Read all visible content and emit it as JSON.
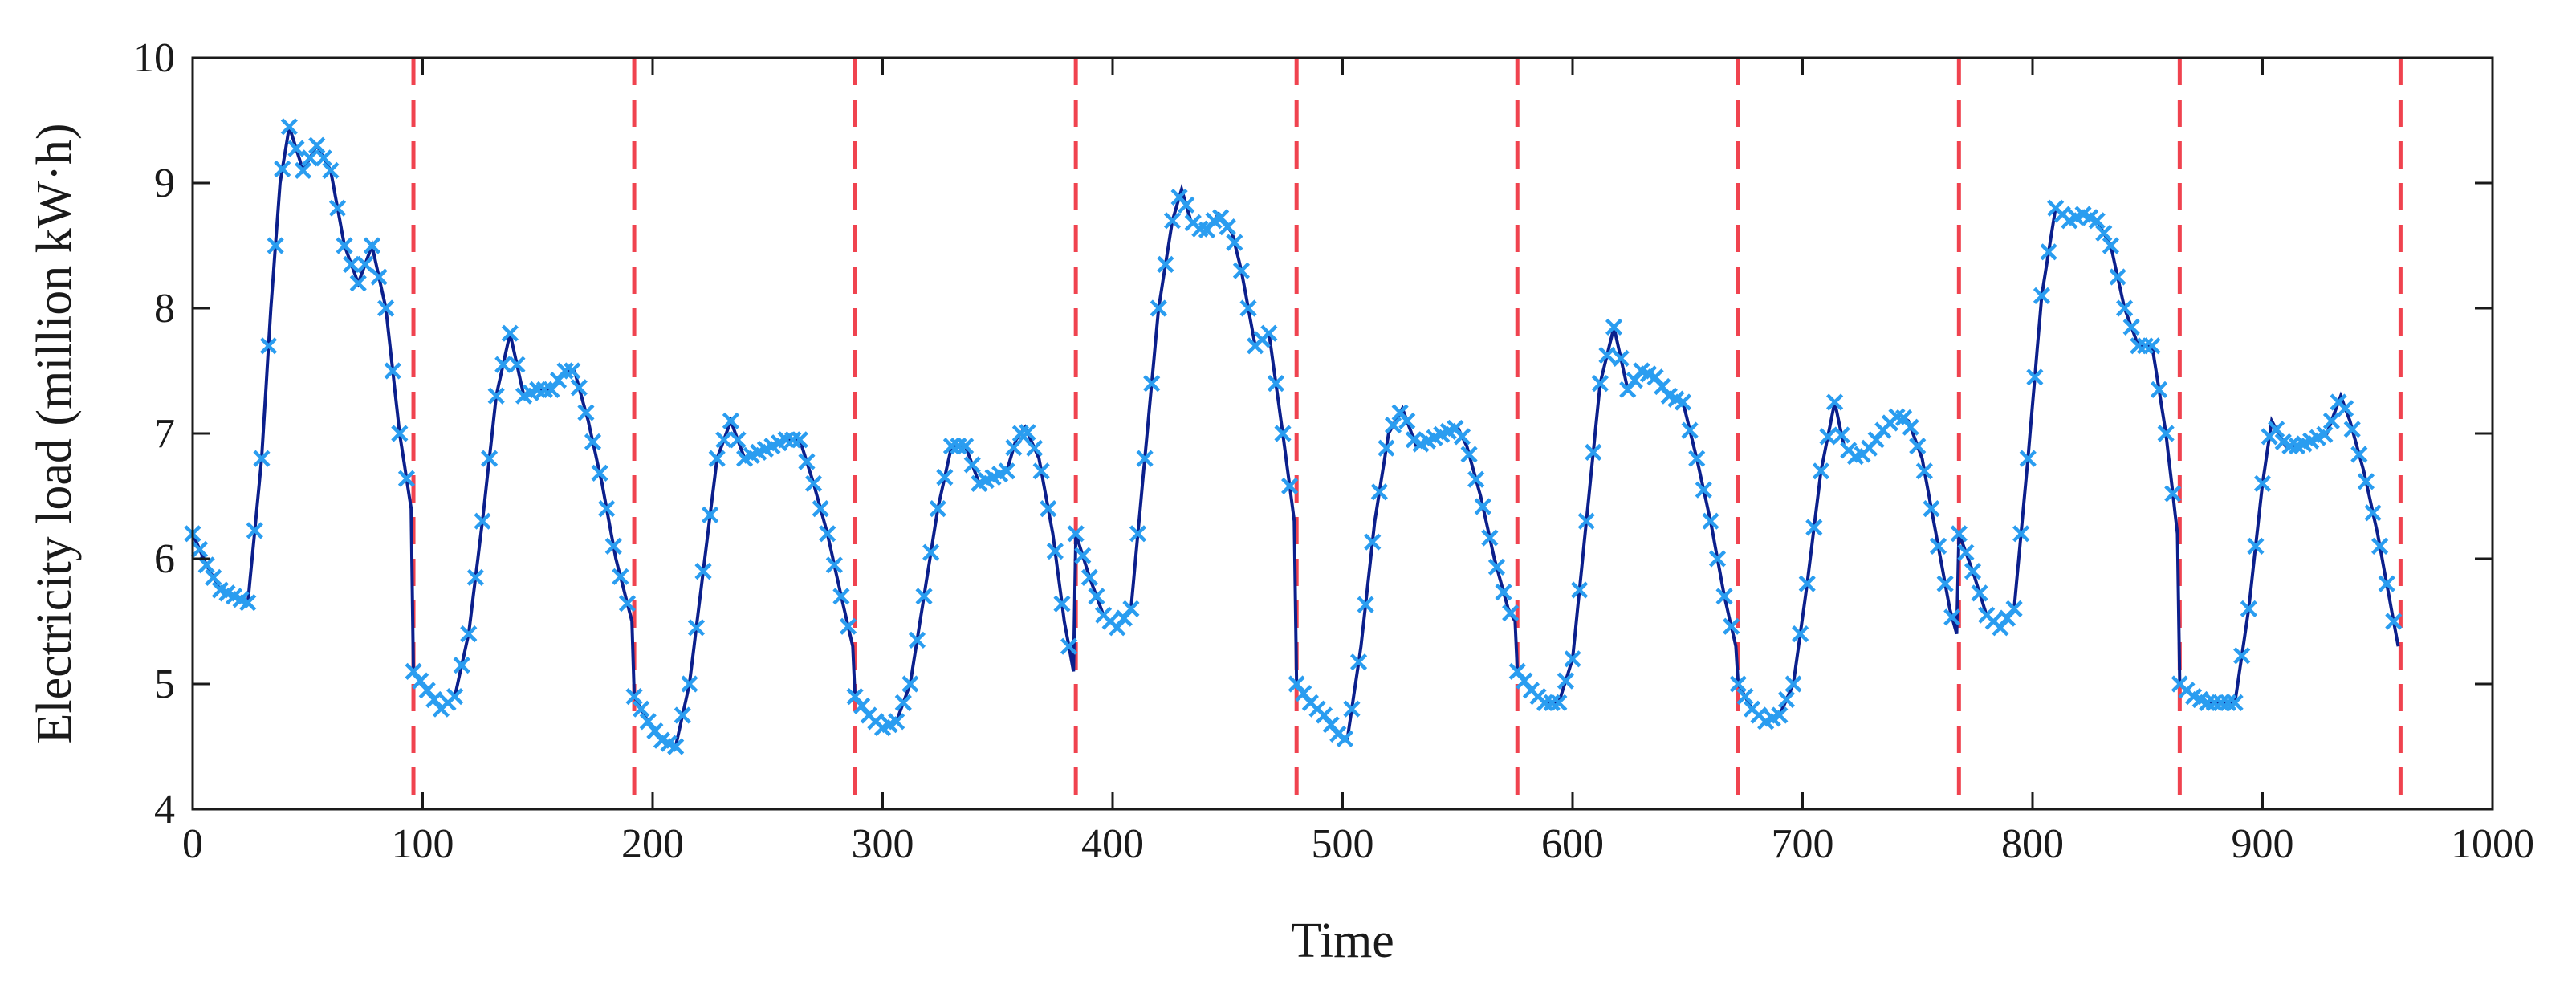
{
  "chart_data": {
    "type": "line",
    "title": "",
    "xlabel": "Time",
    "ylabel": "Electricity load (million kW·h)",
    "xlim": [
      0,
      1000
    ],
    "ylim": [
      4,
      10
    ],
    "x_ticks": [
      0,
      100,
      200,
      300,
      400,
      500,
      600,
      700,
      800,
      900,
      1000
    ],
    "x_tick_labels": [
      "0",
      "100",
      "200",
      "300",
      "400",
      "500",
      "600",
      "700",
      "800",
      "900",
      "1000"
    ],
    "y_ticks": [
      4,
      5,
      6,
      7,
      8,
      9,
      10
    ],
    "y_tick_labels": [
      "4",
      "5",
      "6",
      "7",
      "8",
      "9",
      "10"
    ],
    "grid": false,
    "sample_step": 3,
    "day_boundaries": [
      96,
      192,
      288,
      384,
      480,
      576,
      672,
      768,
      864,
      960
    ],
    "colors": {
      "series_line": "#0b1f8c",
      "series_markers": "#2a9df0",
      "day_boundary": "#f0434f",
      "axes": "#1a1a1a"
    },
    "series": [
      {
        "name": "Electricity load",
        "line_style": "solid",
        "marker": "x",
        "daily_profiles": [
          {
            "day": 1,
            "t": [
              0,
              6,
              12,
              18,
              24,
              30,
              34,
              38,
              42,
              48,
              54,
              60,
              66,
              72,
              78,
              84,
              90,
              95
            ],
            "v": [
              6.2,
              5.95,
              5.75,
              5.7,
              5.65,
              6.8,
              8.0,
              9.0,
              9.45,
              9.1,
              9.3,
              9.1,
              8.5,
              8.2,
              8.5,
              8.0,
              7.0,
              6.4
            ]
          },
          {
            "day": 2,
            "t": [
              0,
              6,
              12,
              18,
              24,
              30,
              36,
              42,
              48,
              54,
              60,
              66,
              70,
              76,
              82,
              88,
              95
            ],
            "v": [
              5.1,
              4.95,
              4.8,
              4.9,
              5.4,
              6.3,
              7.3,
              7.8,
              7.3,
              7.35,
              7.35,
              7.5,
              7.5,
              7.1,
              6.6,
              6.0,
              5.5
            ]
          },
          {
            "day": 3,
            "t": [
              0,
              6,
              12,
              18,
              24,
              30,
              36,
              42,
              48,
              54,
              60,
              66,
              72,
              78,
              84,
              90,
              95
            ],
            "v": [
              4.9,
              4.7,
              4.55,
              4.5,
              5.0,
              5.9,
              6.8,
              7.1,
              6.8,
              6.85,
              6.9,
              6.95,
              6.95,
              6.6,
              6.2,
              5.7,
              5.3
            ]
          },
          {
            "day": 4,
            "t": [
              0,
              6,
              12,
              18,
              24,
              30,
              36,
              42,
              48,
              54,
              60,
              66,
              70,
              74,
              80,
              86,
              91,
              95
            ],
            "v": [
              4.9,
              4.75,
              4.65,
              4.7,
              5.0,
              5.7,
              6.4,
              6.9,
              6.9,
              6.6,
              6.65,
              6.7,
              6.95,
              7.05,
              6.8,
              6.2,
              5.5,
              5.1
            ]
          },
          {
            "day": 5,
            "t": [
              0,
              6,
              12,
              18,
              24,
              30,
              36,
              42,
              46,
              50,
              56,
              62,
              68,
              72,
              78,
              84,
              90,
              95
            ],
            "v": [
              6.2,
              5.85,
              5.55,
              5.45,
              5.6,
              6.8,
              8.0,
              8.7,
              8.95,
              8.7,
              8.6,
              8.75,
              8.6,
              8.3,
              7.7,
              7.8,
              7.0,
              6.3
            ]
          },
          {
            "day": 6,
            "t": [
              0,
              6,
              12,
              18,
              22,
              28,
              34,
              40,
              46,
              52,
              58,
              64,
              70,
              74,
              80,
              86,
              92,
              95
            ],
            "v": [
              5.0,
              4.85,
              4.75,
              4.6,
              4.55,
              5.3,
              6.3,
              7.0,
              7.2,
              6.9,
              6.95,
              7.0,
              7.05,
              6.9,
              6.5,
              6.0,
              5.6,
              5.5
            ]
          },
          {
            "day": 7,
            "t": [
              0,
              6,
              12,
              18,
              24,
              30,
              36,
              42,
              48,
              54,
              60,
              66,
              72,
              78,
              84,
              90,
              95
            ],
            "v": [
              5.1,
              4.95,
              4.85,
              4.85,
              5.2,
              6.3,
              7.4,
              7.85,
              7.35,
              7.5,
              7.45,
              7.3,
              7.25,
              6.8,
              6.3,
              5.7,
              5.3
            ]
          },
          {
            "day": 8,
            "t": [
              0,
              6,
              12,
              18,
              24,
              30,
              36,
              42,
              46,
              52,
              58,
              64,
              70,
              74,
              80,
              86,
              92,
              95
            ],
            "v": [
              5.0,
              4.8,
              4.7,
              4.75,
              5.0,
              5.8,
              6.7,
              7.25,
              6.9,
              6.8,
              6.9,
              7.05,
              7.15,
              7.1,
              6.8,
              6.2,
              5.6,
              5.4
            ]
          },
          {
            "day": 9,
            "t": [
              0,
              6,
              12,
              18,
              24,
              30,
              36,
              42,
              48,
              54,
              60,
              66,
              72,
              78,
              84,
              90,
              95
            ],
            "v": [
              6.2,
              5.9,
              5.55,
              5.45,
              5.6,
              6.8,
              8.1,
              8.8,
              8.7,
              8.75,
              8.7,
              8.5,
              8.0,
              7.7,
              7.7,
              7.0,
              6.2
            ]
          },
          {
            "day": 10,
            "t": [
              0,
              6,
              12,
              18,
              24,
              30,
              36,
              40,
              46,
              52,
              58,
              64,
              70,
              74,
              80,
              86,
              92,
              95
            ],
            "v": [
              5.0,
              4.9,
              4.85,
              4.85,
              4.85,
              5.6,
              6.6,
              7.1,
              6.9,
              6.9,
              6.95,
              7.0,
              7.3,
              7.1,
              6.7,
              6.2,
              5.6,
              5.3
            ]
          }
        ]
      }
    ]
  }
}
